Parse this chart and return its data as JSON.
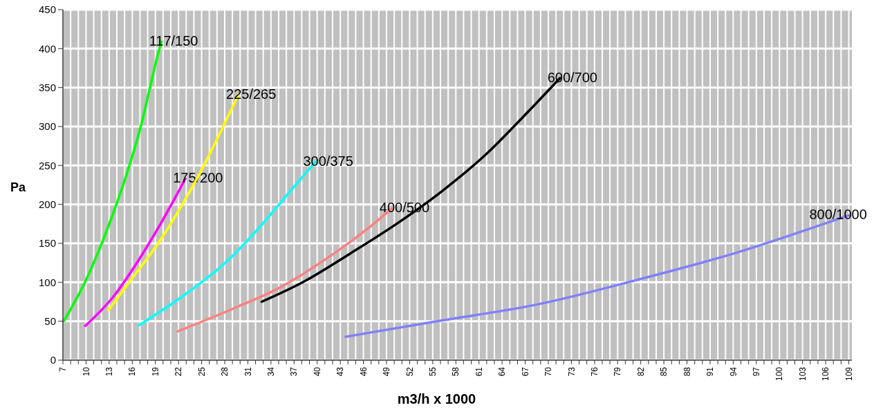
{
  "chart_data": {
    "type": "line",
    "xlabel": "m3/h x 1000",
    "ylabel": "Pa",
    "xlim": [
      7,
      109.4
    ],
    "ylim": [
      0,
      450
    ],
    "yticks": [
      0,
      50,
      100,
      150,
      200,
      250,
      300,
      350,
      400,
      450
    ],
    "xticks": [
      7,
      {
        "value": 8,
        "label": null
      },
      {
        "value": 9,
        "label": null
      },
      10,
      {
        "value": 11,
        "label": null
      },
      {
        "value": 12,
        "label": null
      },
      13,
      {
        "value": 14,
        "label": null
      },
      {
        "value": 15,
        "label": null
      },
      16,
      {
        "value": 17,
        "label": null
      },
      {
        "value": 18,
        "label": null
      },
      19,
      {
        "value": 20,
        "label": null
      },
      {
        "value": 21,
        "label": null
      },
      22,
      {
        "value": 23,
        "label": null
      },
      {
        "value": 24,
        "label": null
      },
      25,
      {
        "value": 26,
        "label": null
      },
      {
        "value": 27,
        "label": null
      },
      28,
      {
        "value": 29,
        "label": null
      },
      {
        "value": 30,
        "label": null
      },
      31,
      {
        "value": 32,
        "label": null
      },
      {
        "value": 33,
        "label": null
      },
      34,
      {
        "value": 35,
        "label": null
      },
      {
        "value": 36,
        "label": null
      },
      37,
      {
        "value": 38,
        "label": null
      },
      {
        "value": 39,
        "label": null
      },
      40,
      {
        "value": 41,
        "label": null
      },
      {
        "value": 42,
        "label": null
      },
      43,
      {
        "value": 44,
        "label": null
      },
      {
        "value": 45,
        "label": null
      },
      46,
      {
        "value": 47,
        "label": null
      },
      {
        "value": 48,
        "label": null
      },
      49,
      {
        "value": 50,
        "label": null
      },
      {
        "value": 51,
        "label": null
      },
      52,
      {
        "value": 53,
        "label": null
      },
      {
        "value": 54,
        "label": null
      },
      55,
      {
        "value": 56,
        "label": null
      },
      {
        "value": 57,
        "label": null
      },
      58,
      {
        "value": 59,
        "label": null
      },
      {
        "value": 60,
        "label": null
      },
      61,
      {
        "value": 62,
        "label": null
      },
      {
        "value": 63,
        "label": null
      },
      64,
      {
        "value": 65,
        "label": null
      },
      {
        "value": 66,
        "label": null
      },
      67,
      {
        "value": 68,
        "label": null
      },
      {
        "value": 69,
        "label": null
      },
      70,
      {
        "value": 71,
        "label": null
      },
      {
        "value": 72,
        "label": null
      },
      73,
      {
        "value": 74,
        "label": null
      },
      {
        "value": 75,
        "label": null
      },
      76,
      {
        "value": 77,
        "label": null
      },
      {
        "value": 78,
        "label": null
      },
      79,
      {
        "value": 80,
        "label": null
      },
      {
        "value": 81,
        "label": null
      },
      82,
      {
        "value": 83,
        "label": null
      },
      {
        "value": 84,
        "label": null
      },
      85,
      {
        "value": 86,
        "label": null
      },
      {
        "value": 87,
        "label": null
      },
      88,
      {
        "value": 89,
        "label": null
      },
      {
        "value": 90,
        "label": null
      },
      91,
      {
        "value": 92,
        "label": null
      },
      {
        "value": 93,
        "label": null
      },
      94,
      {
        "value": 95,
        "label": null
      },
      {
        "value": 96,
        "label": null
      },
      97,
      {
        "value": 98,
        "label": null
      },
      {
        "value": 99,
        "label": null
      },
      100,
      {
        "value": 101,
        "label": null
      },
      {
        "value": 102,
        "label": null
      },
      103,
      {
        "value": 104,
        "label": null
      },
      {
        "value": 105,
        "label": null
      },
      106,
      {
        "value": 107,
        "label": null
      },
      {
        "value": 108,
        "label": null
      },
      109
    ],
    "grid": true,
    "marker": "none",
    "line_style": "solid",
    "series": [
      {
        "name": "117/150",
        "color": "#00ff00",
        "x": [
          7.1,
          9.9,
          12,
          13.9,
          15.6,
          17.1,
          18.3,
          19.2,
          19.8
        ],
        "values": [
          50,
          101,
          149,
          199,
          249,
          300,
          350,
          388,
          409
        ]
      },
      {
        "name": "175/200",
        "color": "#ff00ff",
        "x": [
          9.9,
          13.5,
          16.8,
          19.5,
          22.9
        ],
        "values": [
          44,
          81,
          128,
          172,
          233
        ]
      },
      {
        "name": "225/265",
        "color": "#ffff00",
        "x": [
          12.9,
          15.9,
          19.5,
          22.8,
          25.4,
          27.8,
          29.8
        ],
        "values": [
          64,
          104,
          152,
          205,
          252,
          300,
          341
        ]
      },
      {
        "name": "300/375",
        "color": "#00ffff",
        "x": [
          16.9,
          22.8,
          28.4,
          32.9,
          36.5,
          39.8
        ],
        "values": [
          45,
          84,
          128,
          175,
          217,
          255
        ]
      },
      {
        "name": "400/500",
        "color": "#ff8080",
        "x": [
          21.9,
          29.3,
          35.3,
          41.3,
          46.7,
          49.7
        ],
        "values": [
          37,
          67,
          94,
          131,
          170,
          195
        ]
      },
      {
        "name": "600/700",
        "color": "#000000",
        "x": [
          32.8,
          38.3,
          44.3,
          50.3,
          56.2,
          62.2,
          66.7,
          71.5
        ],
        "values": [
          75,
          101,
          137,
          175,
          217,
          267,
          312,
          362
        ]
      },
      {
        "name": "800/1000",
        "color": "#8080ff",
        "x": [
          43.7,
          56.2,
          68.8,
          81.5,
          94.1,
          109
        ],
        "values": [
          30,
          51,
          72,
          103,
          137,
          186
        ]
      }
    ]
  }
}
